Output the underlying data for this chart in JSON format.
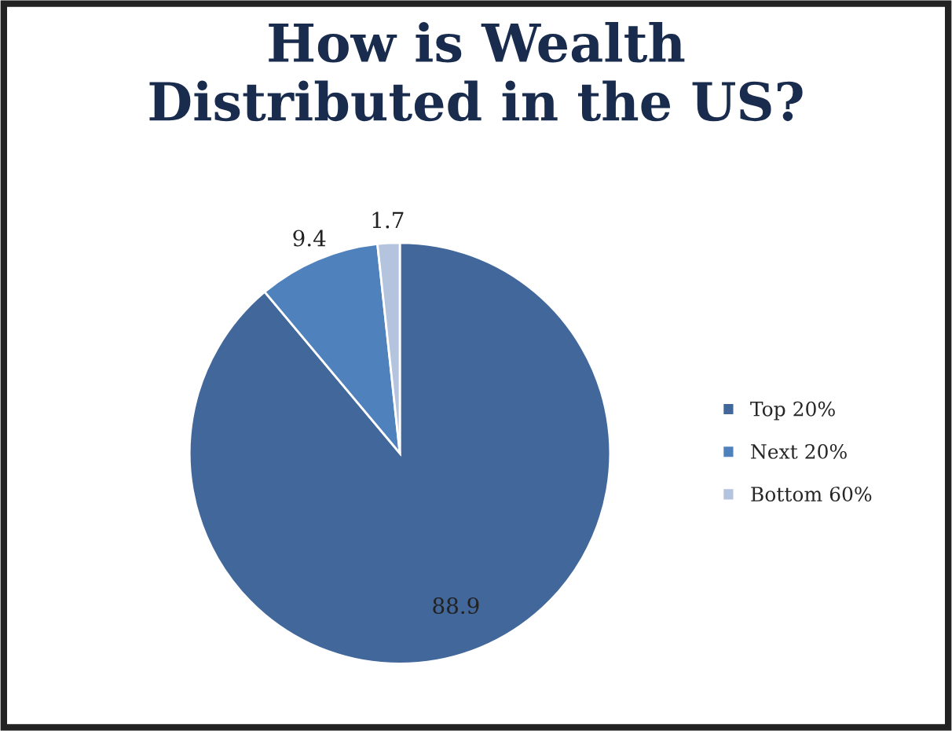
{
  "chart_data": {
    "type": "pie",
    "title": "How is Wealth\nDistributed in the US?",
    "categories": [
      "Top 20%",
      "Next 20%",
      "Bottom 60%"
    ],
    "values": [
      88.9,
      9.4,
      1.7
    ],
    "colors": [
      "#41679b",
      "#4f81bd",
      "#b4c4de"
    ],
    "data_labels": true,
    "legend": "right"
  }
}
